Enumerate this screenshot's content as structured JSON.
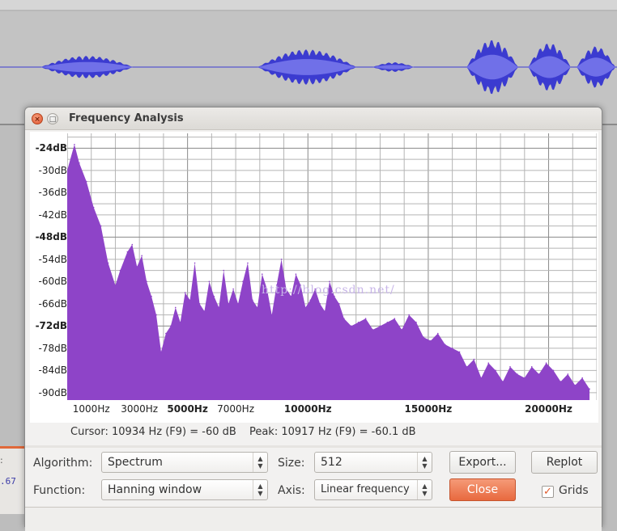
{
  "window": {
    "title": "Frequency Analysis",
    "close_glyph": "×",
    "max_glyph": "□"
  },
  "background": {
    "left_text_1": ":",
    "left_text_2": ".67",
    "track_color": "#3b3bd0",
    "track_highlight": "#7070e8"
  },
  "watermark": "http://blog.csdn.net/",
  "chart_data": {
    "type": "area",
    "title": "",
    "xlabel": "",
    "ylabel": "",
    "color": "#8e44c8",
    "xlim": [
      0,
      22000
    ],
    "ylim": [
      -92,
      -20
    ],
    "grid": true,
    "y_ticks": [
      {
        "label": "-24dB",
        "value": -24,
        "bold": true
      },
      {
        "label": "-30dB",
        "value": -30,
        "bold": false
      },
      {
        "label": "-36dB",
        "value": -36,
        "bold": false
      },
      {
        "label": "-42dB",
        "value": -42,
        "bold": false
      },
      {
        "label": "-48dB",
        "value": -48,
        "bold": true
      },
      {
        "label": "-54dB",
        "value": -54,
        "bold": false
      },
      {
        "label": "-60dB",
        "value": -60,
        "bold": false
      },
      {
        "label": "-66dB",
        "value": -66,
        "bold": false
      },
      {
        "label": "-72dB",
        "value": -72,
        "bold": true
      },
      {
        "label": "-78dB",
        "value": -78,
        "bold": false
      },
      {
        "label": "-84dB",
        "value": -84,
        "bold": false
      },
      {
        "label": "-90dB",
        "value": -90,
        "bold": false
      }
    ],
    "x_ticks": [
      {
        "label": "1000Hz",
        "value": 1000,
        "bold": false
      },
      {
        "label": "3000Hz",
        "value": 3000,
        "bold": false
      },
      {
        "label": "5000Hz",
        "value": 5000,
        "bold": true
      },
      {
        "label": "7000Hz",
        "value": 7000,
        "bold": false
      },
      {
        "label": "10000Hz",
        "value": 10000,
        "bold": true
      },
      {
        "label": "15000Hz",
        "value": 15000,
        "bold": true
      },
      {
        "label": "20000Hz",
        "value": 20000,
        "bold": true
      }
    ],
    "x": [
      0,
      300,
      500,
      800,
      1100,
      1400,
      1700,
      2000,
      2200,
      2500,
      2700,
      2900,
      3100,
      3300,
      3500,
      3700,
      3900,
      4100,
      4300,
      4500,
      4700,
      4900,
      5100,
      5300,
      5500,
      5700,
      5900,
      6100,
      6300,
      6500,
      6700,
      6900,
      7100,
      7300,
      7500,
      7700,
      7900,
      8100,
      8300,
      8500,
      8700,
      8900,
      9100,
      9300,
      9500,
      9700,
      9900,
      10100,
      10300,
      10500,
      10700,
      10900,
      11100,
      11300,
      11500,
      11800,
      12100,
      12400,
      12700,
      13000,
      13300,
      13600,
      13900,
      14200,
      14500,
      14800,
      15100,
      15400,
      15700,
      16000,
      16300,
      16600,
      16900,
      17200,
      17500,
      17800,
      18100,
      18400,
      18700,
      19000,
      19300,
      19600,
      19900,
      20200,
      20500,
      20800,
      21100,
      21400,
      21700
    ],
    "values": [
      -30,
      -23,
      -28,
      -33,
      -40,
      -45,
      -55,
      -61,
      -57,
      -52,
      -50,
      -56,
      -53,
      -60,
      -64,
      -69,
      -79,
      -74,
      -72,
      -67,
      -71,
      -63,
      -65,
      -55,
      -66,
      -68,
      -60,
      -64,
      -67,
      -57,
      -66,
      -62,
      -66,
      -60,
      -55,
      -65,
      -67,
      -58,
      -62,
      -69,
      -61,
      -54,
      -62,
      -64,
      -58,
      -61,
      -67,
      -65,
      -62,
      -66,
      -68,
      -60,
      -64,
      -66,
      -70,
      -72,
      -71,
      -70,
      -73,
      -72,
      -71,
      -70,
      -73,
      -69,
      -71,
      -75,
      -76,
      -74,
      -77,
      -78,
      -79,
      -83,
      -81,
      -86,
      -82,
      -84,
      -87,
      -83,
      -85,
      -86,
      -83,
      -85,
      -82,
      -84,
      -87,
      -85,
      -88,
      -86,
      -89
    ]
  },
  "status": {
    "cursor": "Cursor: 10934 Hz (F9) = -60 dB",
    "peak": "Peak: 10917 Hz (F9) = -60.1 dB"
  },
  "controls": {
    "algorithm_label": "Algorithm:",
    "algorithm_value": "Spectrum",
    "function_label": "Function:",
    "function_value": "Hanning window",
    "size_label": "Size:",
    "size_value": "512",
    "axis_label": "Axis:",
    "axis_value": "Linear frequency",
    "export_label": "Export...",
    "replot_label": "Replot",
    "close_label": "Close",
    "grids_label": "Grids",
    "grids_checked": true,
    "check_glyph": "✓",
    "spin_glyph_up": "▲",
    "spin_glyph_down": "▼"
  }
}
